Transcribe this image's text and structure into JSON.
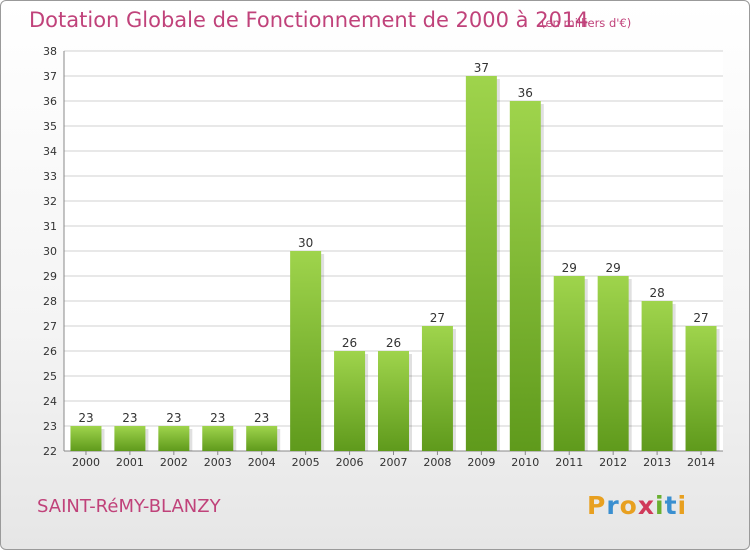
{
  "header": {
    "title": "Dotation Globale de Fonctionnement de 2000 à 2014",
    "subtitle": "(en milliers d'€)"
  },
  "footer": {
    "commune": "SAINT-RéMY-BLANZY",
    "logo_letters": [
      "P",
      "r",
      "o",
      "x",
      "i",
      "t",
      "i"
    ],
    "logo_colors": [
      "#e8a020",
      "#3a8fd0",
      "#e8a020",
      "#d03a5a",
      "#6ab030",
      "#3a8fd0",
      "#e8a020"
    ]
  },
  "colors": {
    "accent": "#c0427a",
    "bar_light": "#9fd44c",
    "bar_dark": "#5f9a1c",
    "grid": "#d0d0d0"
  },
  "chart_data": {
    "type": "bar",
    "title": "Dotation Globale de Fonctionnement de 2000 à 2014",
    "subtitle": "(en milliers d'€)",
    "xlabel": "",
    "ylabel": "",
    "categories": [
      "2000",
      "2001",
      "2002",
      "2003",
      "2004",
      "2005",
      "2006",
      "2007",
      "2008",
      "2009",
      "2010",
      "2011",
      "2012",
      "2013",
      "2014"
    ],
    "values": [
      23,
      23,
      23,
      23,
      23,
      30,
      26,
      26,
      27,
      37,
      36,
      29,
      29,
      28,
      27
    ],
    "ylim": [
      22,
      38
    ],
    "yticks": [
      22,
      23,
      24,
      25,
      26,
      27,
      28,
      29,
      30,
      31,
      32,
      33,
      34,
      35,
      36,
      37,
      38
    ],
    "grid": true,
    "legend": "none"
  }
}
